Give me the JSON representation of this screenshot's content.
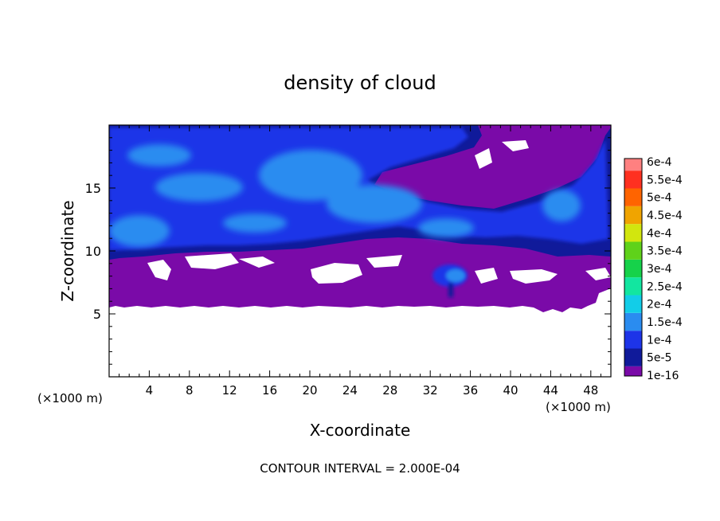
{
  "chart_data": {
    "type": "heatmap",
    "title": "density of cloud",
    "xlabel": "X-coordinate",
    "ylabel": "Z-coordinate",
    "x_unit": "(×1000 m)",
    "y_unit": "(×1000 m)",
    "xlim": [
      0,
      50
    ],
    "ylim": [
      0,
      20
    ],
    "x_ticks": [
      4,
      8,
      12,
      16,
      20,
      24,
      28,
      32,
      36,
      40,
      44,
      48
    ],
    "x_tick_labels": [
      "4",
      "8",
      "12",
      "16",
      "20",
      "24",
      "28",
      "32",
      "36",
      "40",
      "44",
      "48"
    ],
    "y_ticks": [
      5,
      10,
      15
    ],
    "y_tick_labels": [
      "5",
      "10",
      "15"
    ],
    "contour_interval_text": "CONTOUR INTERVAL = 2.000E-04",
    "colorbar": {
      "levels": [
        {
          "label": "1e-16",
          "color": "#7a0aa8"
        },
        {
          "label": "5e-5",
          "color": "#101a9a"
        },
        {
          "label": "1e-4",
          "color": "#1d34e8"
        },
        {
          "label": "1.5e-4",
          "color": "#2a8cf0"
        },
        {
          "label": "2e-4",
          "color": "#12cde8"
        },
        {
          "label": "2.5e-4",
          "color": "#12e6a0"
        },
        {
          "label": "3e-4",
          "color": "#16d24a"
        },
        {
          "label": "3.5e-4",
          "color": "#5fd21a"
        },
        {
          "label": "4e-4",
          "color": "#d2e60e"
        },
        {
          "label": "4.5e-4",
          "color": "#f0a400"
        },
        {
          "label": "5e-4",
          "color": "#ff6400"
        },
        {
          "label": "5.5e-4",
          "color": "#ff3020"
        },
        {
          "label": "6e-4",
          "color": "#ff8080"
        }
      ]
    }
  }
}
